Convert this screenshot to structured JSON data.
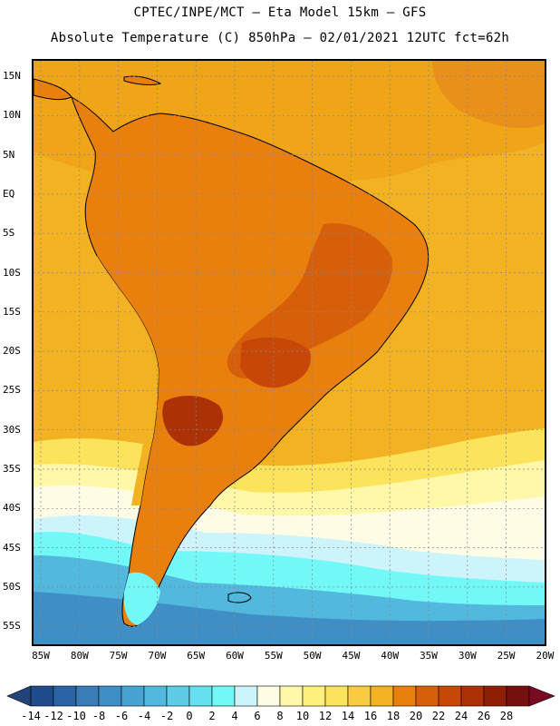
{
  "header": {
    "line1": "CPTEC/INPE/MCT –  Eta Model 15km – GFS",
    "line2": "Absolute Temperature (C) 850hPa – 02/01/2021 12UTC fct=62h"
  },
  "map": {
    "lat_labels": [
      "15N",
      "10N",
      "5N",
      "EQ",
      "5S",
      "10S",
      "15S",
      "20S",
      "25S",
      "30S",
      "35S",
      "40S",
      "45S",
      "50S",
      "55S"
    ],
    "lon_labels": [
      "85W",
      "80W",
      "75W",
      "70W",
      "65W",
      "60W",
      "55W",
      "50W",
      "45W",
      "40W",
      "35W",
      "30W",
      "25W",
      "20W"
    ]
  },
  "colorbar": {
    "labels": [
      "-14",
      "-12",
      "-10",
      "-8",
      "-6",
      "-4",
      "-2",
      "0",
      "2",
      "4",
      "6",
      "8",
      "10",
      "12",
      "14",
      "16",
      "18",
      "20",
      "22",
      "24",
      "26",
      "28"
    ],
    "below_color": "#23447a",
    "above_color": "#7a0a22",
    "colors": [
      "#1f4a8c",
      "#2a64a4",
      "#3a7cb8",
      "#3f8fc6",
      "#47a3d2",
      "#53b8de",
      "#5ecce6",
      "#66e0ee",
      "#73f8f8",
      "#cdf4fb",
      "#fffce6",
      "#fff8a8",
      "#fef07a",
      "#fce35c",
      "#f9cb40",
      "#f3b221",
      "#e97f0c",
      "#d85f09",
      "#c64708",
      "#ac3107",
      "#8e1f05",
      "#76100f"
    ]
  }
}
